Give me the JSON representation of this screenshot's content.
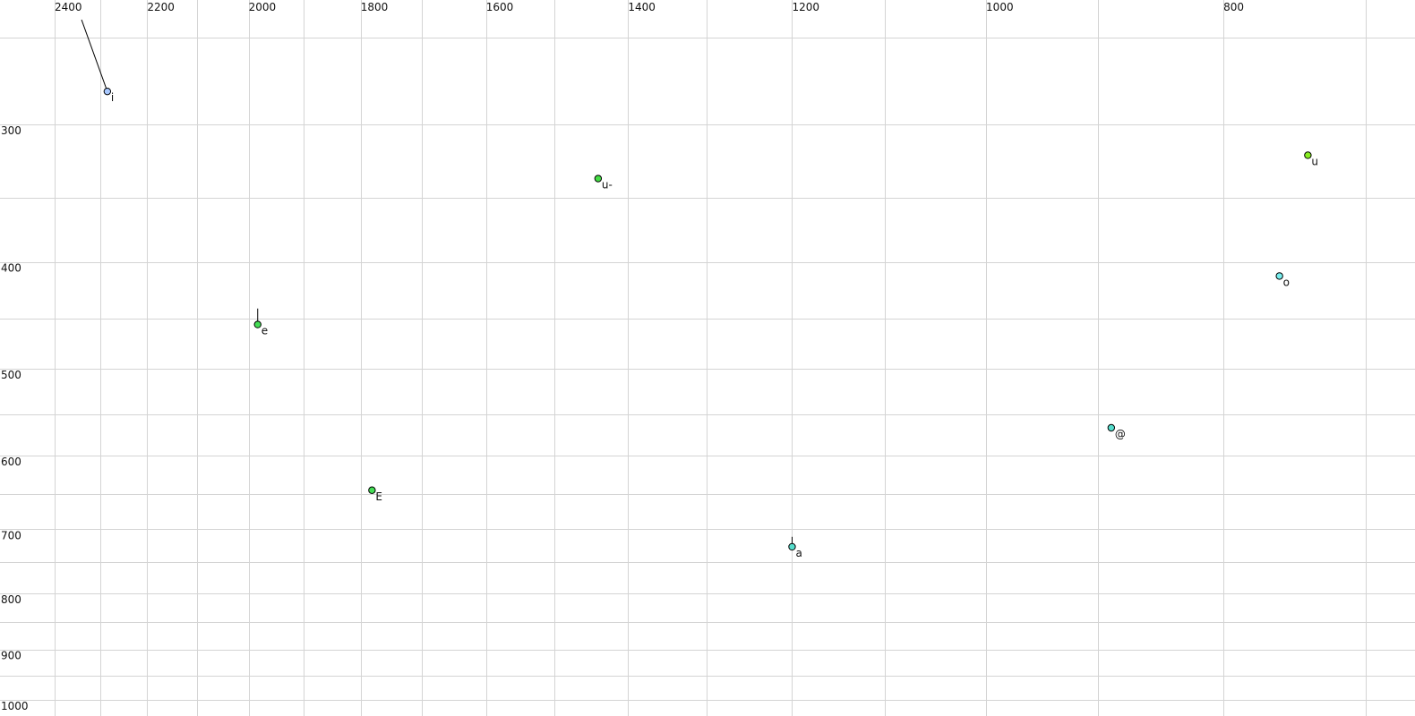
{
  "chart_data": {
    "type": "scatter",
    "title": "",
    "xlabel": "",
    "ylabel": "",
    "x_scale": "log",
    "y_scale": "log",
    "x_reversed": true,
    "y_reversed": true,
    "xlim": [
      2400,
      700
    ],
    "ylim": [
      250,
      1000
    ],
    "grid": true,
    "x_ticks_labeled": [
      2400,
      2200,
      2000,
      1800,
      1600,
      1400,
      1200,
      1000,
      800
    ],
    "x_gridlines": [
      2400,
      2300,
      2200,
      2100,
      2000,
      1900,
      1800,
      1700,
      1600,
      1500,
      1400,
      1300,
      1200,
      1100,
      1000,
      900,
      800,
      700
    ],
    "y_ticks_labeled": [
      300,
      400,
      500,
      600,
      700,
      800,
      900,
      1000
    ],
    "y_gridlines": [
      250,
      300,
      350,
      400,
      450,
      500,
      550,
      600,
      650,
      700,
      750,
      800,
      850,
      900,
      950,
      1000
    ],
    "points": [
      {
        "label": "i",
        "F2": 2284,
        "F1": 280,
        "color": "#a8c8ff",
        "trail": {
          "F2": 2340,
          "F1": 241
        }
      },
      {
        "label": "u-",
        "F2": 1440,
        "F1": 336,
        "color": "#44dd44"
      },
      {
        "label": "u",
        "F2": 739,
        "F1": 320,
        "color": "#88ee22"
      },
      {
        "label": "o",
        "F2": 759,
        "F1": 412,
        "color": "#77eeee"
      },
      {
        "label": "e",
        "F2": 1983,
        "F1": 456,
        "color": "#44dd55",
        "trail": {
          "F2": 1983,
          "F1": 441
        }
      },
      {
        "label": "E",
        "F2": 1781,
        "F1": 645,
        "color": "#44dd55"
      },
      {
        "label": "@",
        "F2": 889,
        "F1": 566,
        "color": "#55ddcc"
      },
      {
        "label": "a",
        "F2": 1200,
        "F1": 726,
        "color": "#55ddcc",
        "trail": {
          "F2": 1200,
          "F1": 711
        }
      }
    ]
  }
}
